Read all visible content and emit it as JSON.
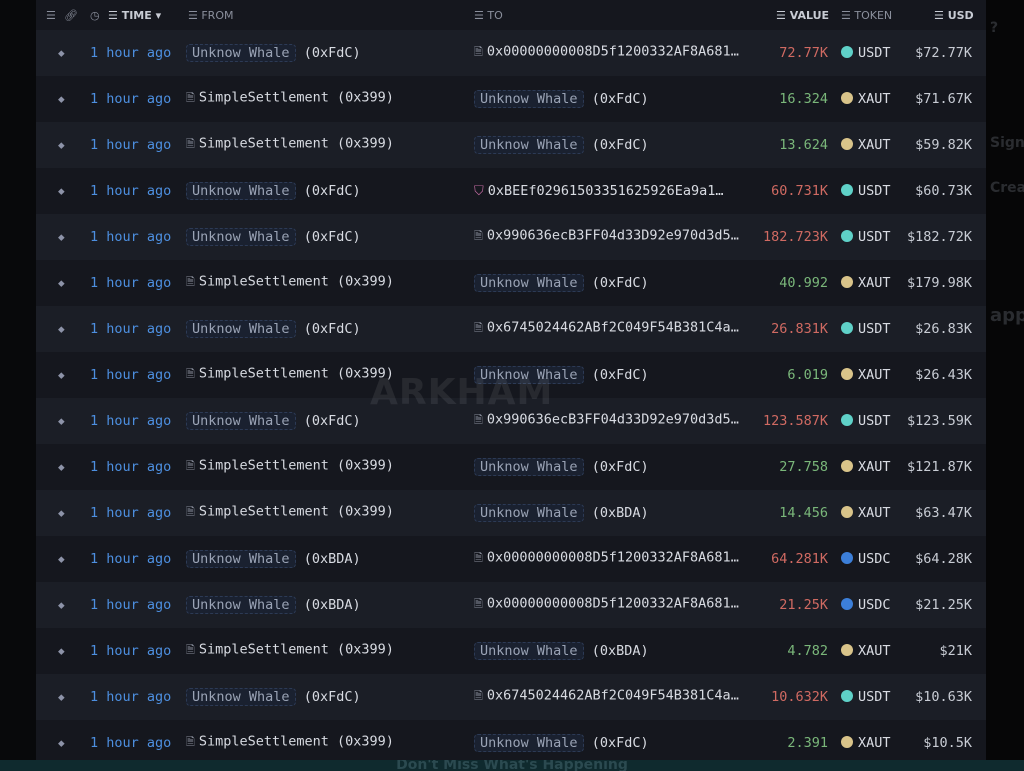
{
  "header": {
    "time": "TIME",
    "from": "FROM",
    "to": "TO",
    "value": "VALUE",
    "token": "TOKEN",
    "usd": "USD"
  },
  "rows": [
    {
      "time": "1 hour ago",
      "from_tag": "Unknow Whale",
      "from_addr": "(0xFdC)",
      "from_name": "",
      "to_tag": "",
      "to_addr": "",
      "to_name": "0x00000000008D5f1200332AF8A681…",
      "value": "72.77K",
      "dir": "out",
      "token": "USDT",
      "usd": "$72.77K"
    },
    {
      "time": "1 hour ago",
      "from_tag": "",
      "from_addr": "",
      "from_name": "SimpleSettlement (0x399)",
      "to_tag": "Unknow Whale",
      "to_addr": "(0xFdC)",
      "to_name": "",
      "value": "16.324",
      "dir": "in",
      "token": "XAUT",
      "usd": "$71.67K"
    },
    {
      "time": "1 hour ago",
      "from_tag": "",
      "from_addr": "",
      "from_name": "SimpleSettlement (0x399)",
      "to_tag": "Unknow Whale",
      "to_addr": "(0xFdC)",
      "to_name": "",
      "value": "13.624",
      "dir": "in",
      "token": "XAUT",
      "usd": "$59.82K"
    },
    {
      "time": "1 hour ago",
      "from_tag": "Unknow Whale",
      "from_addr": "(0xFdC)",
      "from_name": "",
      "to_tag": "",
      "to_addr": "",
      "to_name": "0xBEEf02961503351625926Ea9a1…",
      "value": "60.731K",
      "dir": "out",
      "token": "USDT",
      "usd": "$60.73K",
      "to_icon": "vault"
    },
    {
      "time": "1 hour ago",
      "from_tag": "Unknow Whale",
      "from_addr": "(0xFdC)",
      "from_name": "",
      "to_tag": "",
      "to_addr": "",
      "to_name": "0x990636ecB3FF04d33D92e970d3d5…",
      "value": "182.723K",
      "dir": "out",
      "token": "USDT",
      "usd": "$182.72K"
    },
    {
      "time": "1 hour ago",
      "from_tag": "",
      "from_addr": "",
      "from_name": "SimpleSettlement (0x399)",
      "to_tag": "Unknow Whale",
      "to_addr": "(0xFdC)",
      "to_name": "",
      "value": "40.992",
      "dir": "in",
      "token": "XAUT",
      "usd": "$179.98K"
    },
    {
      "time": "1 hour ago",
      "from_tag": "Unknow Whale",
      "from_addr": "(0xFdC)",
      "from_name": "",
      "to_tag": "",
      "to_addr": "",
      "to_name": "0x6745024462ABf2C049F54B381C4a…",
      "value": "26.831K",
      "dir": "out",
      "token": "USDT",
      "usd": "$26.83K"
    },
    {
      "time": "1 hour ago",
      "from_tag": "",
      "from_addr": "",
      "from_name": "SimpleSettlement (0x399)",
      "to_tag": "Unknow Whale",
      "to_addr": "(0xFdC)",
      "to_name": "",
      "value": "6.019",
      "dir": "in",
      "token": "XAUT",
      "usd": "$26.43K"
    },
    {
      "time": "1 hour ago",
      "from_tag": "Unknow Whale",
      "from_addr": "(0xFdC)",
      "from_name": "",
      "to_tag": "",
      "to_addr": "",
      "to_name": "0x990636ecB3FF04d33D92e970d3d5…",
      "value": "123.587K",
      "dir": "out",
      "token": "USDT",
      "usd": "$123.59K"
    },
    {
      "time": "1 hour ago",
      "from_tag": "",
      "from_addr": "",
      "from_name": "SimpleSettlement (0x399)",
      "to_tag": "Unknow Whale",
      "to_addr": "(0xFdC)",
      "to_name": "",
      "value": "27.758",
      "dir": "in",
      "token": "XAUT",
      "usd": "$121.87K"
    },
    {
      "time": "1 hour ago",
      "from_tag": "",
      "from_addr": "",
      "from_name": "SimpleSettlement (0x399)",
      "to_tag": "Unknow Whale",
      "to_addr": "(0xBDA)",
      "to_name": "",
      "value": "14.456",
      "dir": "in",
      "token": "XAUT",
      "usd": "$63.47K"
    },
    {
      "time": "1 hour ago",
      "from_tag": "Unknow Whale",
      "from_addr": "(0xBDA)",
      "from_name": "",
      "to_tag": "",
      "to_addr": "",
      "to_name": "0x00000000008D5f1200332AF8A681…",
      "value": "64.281K",
      "dir": "out",
      "token": "USDC",
      "usd": "$64.28K"
    },
    {
      "time": "1 hour ago",
      "from_tag": "Unknow Whale",
      "from_addr": "(0xBDA)",
      "from_name": "",
      "to_tag": "",
      "to_addr": "",
      "to_name": "0x00000000008D5f1200332AF8A681…",
      "value": "21.25K",
      "dir": "out",
      "token": "USDC",
      "usd": "$21.25K"
    },
    {
      "time": "1 hour ago",
      "from_tag": "",
      "from_addr": "",
      "from_name": "SimpleSettlement (0x399)",
      "to_tag": "Unknow Whale",
      "to_addr": "(0xBDA)",
      "to_name": "",
      "value": "4.782",
      "dir": "in",
      "token": "XAUT",
      "usd": "$21K"
    },
    {
      "time": "1 hour ago",
      "from_tag": "Unknow Whale",
      "from_addr": "(0xFdC)",
      "from_name": "",
      "to_tag": "",
      "to_addr": "",
      "to_name": "0x6745024462ABf2C049F54B381C4a…",
      "value": "10.632K",
      "dir": "out",
      "token": "USDT",
      "usd": "$10.63K"
    },
    {
      "time": "1 hour ago",
      "from_tag": "",
      "from_addr": "",
      "from_name": "SimpleSettlement (0x399)",
      "to_tag": "Unknow Whale",
      "to_addr": "(0xFdC)",
      "to_name": "",
      "value": "2.391",
      "dir": "in",
      "token": "XAUT",
      "usd": "$10.5K"
    }
  ],
  "token_colors": {
    "USDT": "#5fd1c8",
    "XAUT": "#d9c48a",
    "USDC": "#3c7fd9"
  },
  "value_colors": {
    "out": "#d06a62",
    "in": "#7ab77a"
  },
  "watermark": "ARKHAM",
  "side": {
    "q": "?",
    "sign": "Sign",
    "create": "Creat",
    "happen": "appe"
  },
  "banner": "Don't Miss What's Happening"
}
